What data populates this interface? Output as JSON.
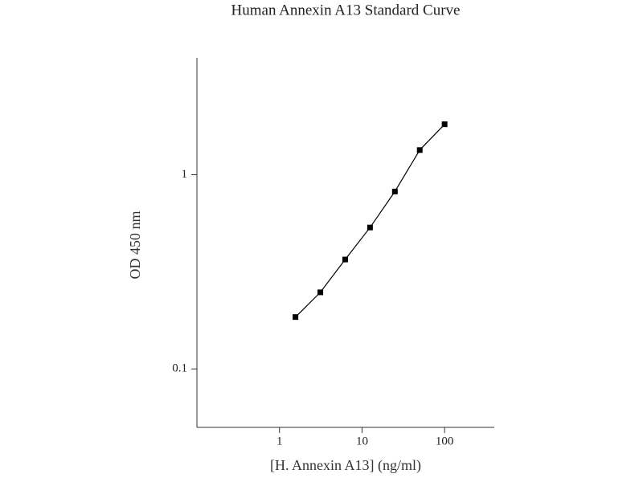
{
  "chart_data": {
    "type": "line",
    "title": "Human Annexin A13 Standard Curve",
    "x_label": "[H. Annexin A13] (ng/ml)",
    "y_label": "OD 450 nm",
    "x": [
      1.5625,
      3.125,
      6.25,
      12.5,
      25,
      50,
      100
    ],
    "values": [
      0.185,
      0.248,
      0.366,
      0.535,
      0.82,
      1.34,
      1.82
    ],
    "color": "#000000",
    "xlim": [
      0.1,
      400
    ],
    "ylim": [
      0.05,
      4
    ],
    "xticks": [
      1,
      10,
      100
    ],
    "yticks": [
      0.1,
      1
    ],
    "log_x": true,
    "log_y": true,
    "grid": false
  }
}
